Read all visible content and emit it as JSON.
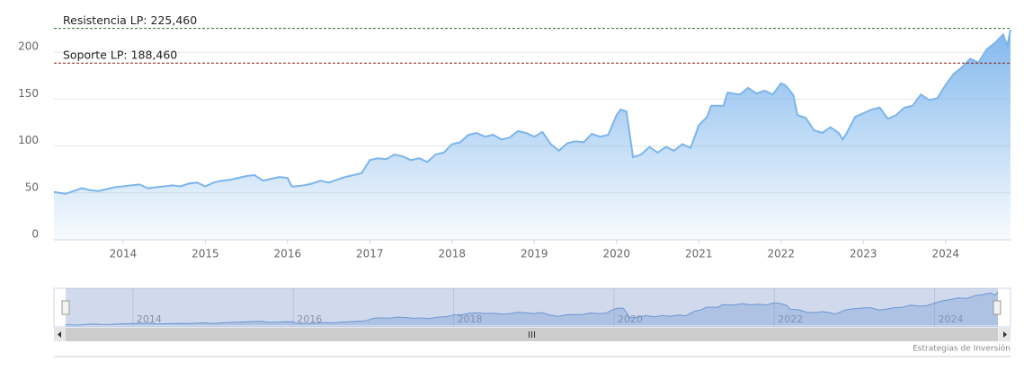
{
  "chart_data": {
    "type": "area",
    "x": [
      2013.16,
      2013.3,
      2013.4,
      2013.5,
      2013.6,
      2013.7,
      2013.8,
      2013.9,
      2014.0,
      2014.1,
      2014.2,
      2014.3,
      2014.4,
      2014.5,
      2014.6,
      2014.7,
      2014.8,
      2014.9,
      2015.0,
      2015.1,
      2015.2,
      2015.3,
      2015.4,
      2015.5,
      2015.6,
      2015.7,
      2015.8,
      2015.9,
      2016.0,
      2016.05,
      2016.1,
      2016.2,
      2016.3,
      2016.4,
      2016.5,
      2016.6,
      2016.7,
      2016.8,
      2016.9,
      2017.0,
      2017.1,
      2017.2,
      2017.3,
      2017.4,
      2017.5,
      2017.6,
      2017.7,
      2017.8,
      2017.9,
      2018.0,
      2018.1,
      2018.2,
      2018.3,
      2018.4,
      2018.5,
      2018.6,
      2018.7,
      2018.8,
      2018.9,
      2019.0,
      2019.1,
      2019.2,
      2019.3,
      2019.4,
      2019.5,
      2019.6,
      2019.7,
      2019.8,
      2019.9,
      2020.0,
      2020.05,
      2020.12,
      2020.2,
      2020.3,
      2020.4,
      2020.5,
      2020.6,
      2020.7,
      2020.8,
      2020.9,
      2021.0,
      2021.1,
      2021.15,
      2021.3,
      2021.35,
      2021.5,
      2021.6,
      2021.7,
      2021.8,
      2021.9,
      2022.0,
      2022.05,
      2022.1,
      2022.15,
      2022.2,
      2022.3,
      2022.4,
      2022.5,
      2022.6,
      2022.7,
      2022.75,
      2022.8,
      2022.9,
      2023.0,
      2023.1,
      2023.2,
      2023.3,
      2023.4,
      2023.5,
      2023.6,
      2023.7,
      2023.8,
      2023.9,
      2024.0,
      2024.1,
      2024.2,
      2024.3,
      2024.4,
      2024.5,
      2024.6,
      2024.7,
      2024.75,
      2024.79
    ],
    "values": [
      51,
      49,
      52,
      55,
      53,
      52,
      54,
      56,
      57,
      58,
      59,
      55,
      56,
      57,
      58,
      57,
      60,
      61,
      57,
      61,
      63,
      64,
      66,
      68,
      69,
      63,
      65,
      67,
      66,
      57,
      57,
      58,
      60,
      63,
      61,
      64,
      67,
      69,
      71,
      85,
      87,
      86,
      91,
      89,
      85,
      87,
      83,
      91,
      93,
      102,
      104,
      112,
      114,
      110,
      112,
      107,
      109,
      116,
      114,
      110,
      115,
      102,
      95,
      103,
      105,
      104,
      113,
      110,
      112,
      133,
      139,
      137,
      88,
      91,
      99,
      93,
      99,
      95,
      102,
      98,
      122,
      131,
      143,
      143,
      157,
      155,
      162,
      156,
      159,
      155,
      167,
      165,
      160,
      154,
      133,
      130,
      117,
      114,
      120,
      114,
      107,
      114,
      131,
      135,
      139,
      141,
      129,
      133,
      141,
      143,
      155,
      149,
      151,
      165,
      177,
      184,
      193,
      189,
      203,
      210,
      219,
      207,
      224
    ],
    "color": "#7cb5ec",
    "xlim": [
      2013.16,
      2024.79
    ],
    "xticks": [
      2014,
      2015,
      2016,
      2017,
      2018,
      2019,
      2020,
      2021,
      2022,
      2023,
      2024
    ],
    "ylim": [
      0,
      250
    ],
    "yticks": [
      0,
      50,
      100,
      150,
      200
    ],
    "grid": true,
    "plot_lines": [
      {
        "value": 225.46,
        "label": "Resistencia LP: 225,460",
        "color": "#2e6b2e"
      },
      {
        "value": 188.46,
        "label": "Soporte LP: 188,460",
        "color": "#8b1a1a"
      }
    ],
    "navigator": {
      "xticks": [
        2014,
        2016,
        2018,
        2020,
        2022,
        2024
      ],
      "color": "#6f9fd8"
    },
    "credit": "Estrategias de Inversión"
  }
}
